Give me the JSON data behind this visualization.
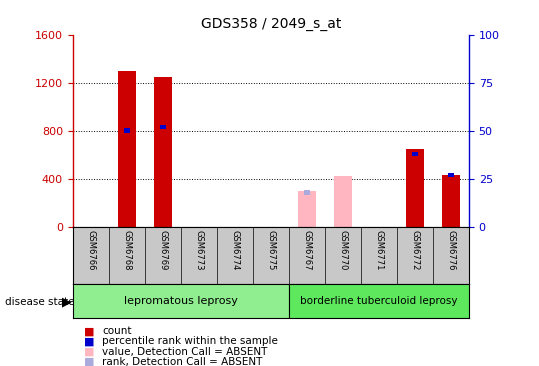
{
  "title": "GDS358 / 2049_s_at",
  "samples": [
    "GSM6766",
    "GSM6768",
    "GSM6769",
    "GSM6773",
    "GSM6774",
    "GSM6775",
    "GSM6767",
    "GSM6770",
    "GSM6771",
    "GSM6772",
    "GSM6776"
  ],
  "count_values": [
    0,
    1300,
    1250,
    0,
    0,
    0,
    300,
    0,
    0,
    650,
    430
  ],
  "count_is_absent": [
    false,
    false,
    false,
    false,
    false,
    false,
    true,
    true,
    false,
    false,
    false
  ],
  "absent_count_values": [
    0,
    0,
    0,
    0,
    0,
    0,
    300,
    420,
    0,
    0,
    0
  ],
  "rank_values": [
    0,
    50,
    52,
    0,
    0,
    0,
    18,
    0,
    0,
    38,
    27
  ],
  "rank_is_absent": [
    false,
    false,
    false,
    false,
    false,
    false,
    true,
    false,
    false,
    false,
    false
  ],
  "groups": [
    {
      "label": "lepromatous leprosy",
      "indices": [
        0,
        1,
        2,
        3,
        4,
        5
      ],
      "color": "#90EE90"
    },
    {
      "label": "borderline tuberculoid leprosy",
      "indices": [
        6,
        7,
        8,
        9,
        10
      ],
      "color": "#5EE85E"
    }
  ],
  "left_ylim": [
    0,
    1600
  ],
  "right_ylim": [
    0,
    100
  ],
  "left_yticks": [
    0,
    400,
    800,
    1200,
    1600
  ],
  "right_yticks": [
    0,
    25,
    50,
    75,
    100
  ],
  "left_tick_color": "#CC0000",
  "right_tick_color": "#0000CC",
  "red_color": "#CC0000",
  "pink_color": "#FFB6C1",
  "blue_color": "#0000CC",
  "light_blue_color": "#AAAADD",
  "sample_bg": "#C8C8C8",
  "legend_items": [
    {
      "label": "count",
      "color": "#CC0000"
    },
    {
      "label": "percentile rank within the sample",
      "color": "#0000CC"
    },
    {
      "label": "value, Detection Call = ABSENT",
      "color": "#FFB6C1"
    },
    {
      "label": "rank, Detection Call = ABSENT",
      "color": "#AAAADD"
    }
  ]
}
